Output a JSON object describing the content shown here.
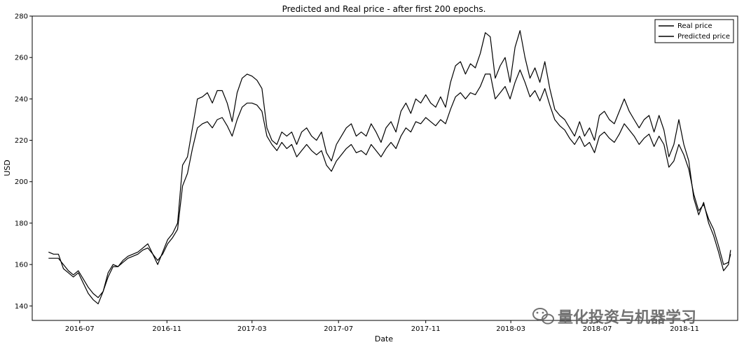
{
  "chart_data": {
    "type": "line",
    "title": "Predicted and Real price - after first 200 epochs.",
    "xlabel": "Date",
    "ylabel": "USD",
    "xlim": [
      "2016-04-25",
      "2019-01-15"
    ],
    "ylim": [
      133,
      280
    ],
    "x_ticks": [
      "2016-07-01",
      "2016-11-01",
      "2017-03-01",
      "2017-07-01",
      "2017-11-01",
      "2018-03-01",
      "2018-07-01",
      "2018-11-01"
    ],
    "x_tick_labels": [
      "2016-07",
      "2016-11",
      "2017-03",
      "2017-07",
      "2017-11",
      "2018-03",
      "2018-07",
      "2018-11"
    ],
    "y_ticks": [
      140,
      160,
      180,
      200,
      220,
      240,
      260,
      280
    ],
    "grid": false,
    "legend": {
      "position": "top-right",
      "entries": [
        "Real price",
        "Predicted price"
      ]
    },
    "series": [
      {
        "name": "Real price",
        "color": "#000000",
        "points": [
          [
            "2016-05-18",
            166
          ],
          [
            "2016-05-25",
            165
          ],
          [
            "2016-06-01",
            165
          ],
          [
            "2016-06-08",
            158
          ],
          [
            "2016-06-15",
            156
          ],
          [
            "2016-06-22",
            154
          ],
          [
            "2016-06-29",
            156
          ],
          [
            "2016-07-06",
            151
          ],
          [
            "2016-07-13",
            146
          ],
          [
            "2016-07-20",
            143
          ],
          [
            "2016-07-27",
            141
          ],
          [
            "2016-08-03",
            147
          ],
          [
            "2016-08-10",
            156
          ],
          [
            "2016-08-17",
            160
          ],
          [
            "2016-08-24",
            159
          ],
          [
            "2016-08-31",
            162
          ],
          [
            "2016-09-07",
            164
          ],
          [
            "2016-09-14",
            165
          ],
          [
            "2016-09-21",
            166
          ],
          [
            "2016-09-28",
            168
          ],
          [
            "2016-10-05",
            170
          ],
          [
            "2016-10-12",
            165
          ],
          [
            "2016-10-19",
            160
          ],
          [
            "2016-10-26",
            166
          ],
          [
            "2016-11-02",
            172
          ],
          [
            "2016-11-09",
            175
          ],
          [
            "2016-11-16",
            180
          ],
          [
            "2016-11-23",
            208
          ],
          [
            "2016-11-30",
            212
          ],
          [
            "2016-12-07",
            226
          ],
          [
            "2016-12-14",
            240
          ],
          [
            "2016-12-21",
            241
          ],
          [
            "2016-12-28",
            243
          ],
          [
            "2017-01-04",
            238
          ],
          [
            "2017-01-11",
            244
          ],
          [
            "2017-01-18",
            244
          ],
          [
            "2017-01-25",
            238
          ],
          [
            "2017-02-01",
            229
          ],
          [
            "2017-02-08",
            243
          ],
          [
            "2017-02-15",
            250
          ],
          [
            "2017-02-22",
            252
          ],
          [
            "2017-03-01",
            251
          ],
          [
            "2017-03-08",
            249
          ],
          [
            "2017-03-15",
            245
          ],
          [
            "2017-03-22",
            226
          ],
          [
            "2017-03-29",
            220
          ],
          [
            "2017-04-05",
            218
          ],
          [
            "2017-04-12",
            224
          ],
          [
            "2017-04-19",
            222
          ],
          [
            "2017-04-26",
            224
          ],
          [
            "2017-05-03",
            218
          ],
          [
            "2017-05-10",
            224
          ],
          [
            "2017-05-17",
            226
          ],
          [
            "2017-05-24",
            222
          ],
          [
            "2017-05-31",
            220
          ],
          [
            "2017-06-07",
            224
          ],
          [
            "2017-06-14",
            214
          ],
          [
            "2017-06-21",
            210
          ],
          [
            "2017-06-28",
            218
          ],
          [
            "2017-07-05",
            222
          ],
          [
            "2017-07-12",
            226
          ],
          [
            "2017-07-19",
            228
          ],
          [
            "2017-07-26",
            222
          ],
          [
            "2017-08-02",
            224
          ],
          [
            "2017-08-09",
            222
          ],
          [
            "2017-08-16",
            228
          ],
          [
            "2017-08-23",
            224
          ],
          [
            "2017-08-30",
            219
          ],
          [
            "2017-09-06",
            226
          ],
          [
            "2017-09-13",
            229
          ],
          [
            "2017-09-20",
            224
          ],
          [
            "2017-09-27",
            234
          ],
          [
            "2017-10-04",
            238
          ],
          [
            "2017-10-11",
            233
          ],
          [
            "2017-10-18",
            240
          ],
          [
            "2017-10-25",
            238
          ],
          [
            "2017-11-01",
            242
          ],
          [
            "2017-11-08",
            238
          ],
          [
            "2017-11-15",
            236
          ],
          [
            "2017-11-22",
            241
          ],
          [
            "2017-11-29",
            236
          ],
          [
            "2017-12-06",
            248
          ],
          [
            "2017-12-13",
            256
          ],
          [
            "2017-12-20",
            258
          ],
          [
            "2017-12-27",
            252
          ],
          [
            "2018-01-03",
            257
          ],
          [
            "2018-01-10",
            255
          ],
          [
            "2018-01-17",
            262
          ],
          [
            "2018-01-24",
            272
          ],
          [
            "2018-01-31",
            270
          ],
          [
            "2018-02-07",
            250
          ],
          [
            "2018-02-14",
            256
          ],
          [
            "2018-02-21",
            260
          ],
          [
            "2018-02-28",
            248
          ],
          [
            "2018-03-07",
            265
          ],
          [
            "2018-03-14",
            273
          ],
          [
            "2018-03-21",
            260
          ],
          [
            "2018-03-28",
            250
          ],
          [
            "2018-04-04",
            255
          ],
          [
            "2018-04-11",
            248
          ],
          [
            "2018-04-18",
            258
          ],
          [
            "2018-04-25",
            245
          ],
          [
            "2018-05-02",
            235
          ],
          [
            "2018-05-09",
            232
          ],
          [
            "2018-05-16",
            230
          ],
          [
            "2018-05-23",
            226
          ],
          [
            "2018-05-30",
            222
          ],
          [
            "2018-06-06",
            229
          ],
          [
            "2018-06-13",
            222
          ],
          [
            "2018-06-20",
            226
          ],
          [
            "2018-06-27",
            220
          ],
          [
            "2018-07-04",
            232
          ],
          [
            "2018-07-11",
            234
          ],
          [
            "2018-07-18",
            230
          ],
          [
            "2018-07-25",
            228
          ],
          [
            "2018-08-01",
            234
          ],
          [
            "2018-08-08",
            240
          ],
          [
            "2018-08-15",
            234
          ],
          [
            "2018-08-22",
            230
          ],
          [
            "2018-08-29",
            226
          ],
          [
            "2018-09-05",
            230
          ],
          [
            "2018-09-12",
            232
          ],
          [
            "2018-09-19",
            224
          ],
          [
            "2018-09-26",
            232
          ],
          [
            "2018-10-03",
            225
          ],
          [
            "2018-10-10",
            212
          ],
          [
            "2018-10-17",
            218
          ],
          [
            "2018-10-24",
            230
          ],
          [
            "2018-10-31",
            218
          ],
          [
            "2018-11-07",
            210
          ],
          [
            "2018-11-14",
            192
          ],
          [
            "2018-11-21",
            184
          ],
          [
            "2018-11-28",
            190
          ],
          [
            "2018-12-05",
            180
          ],
          [
            "2018-12-12",
            174
          ],
          [
            "2018-12-19",
            166
          ],
          [
            "2018-12-26",
            157
          ],
          [
            "2019-01-02",
            160
          ],
          [
            "2019-01-05",
            167
          ]
        ]
      },
      {
        "name": "Predicted price",
        "color": "#000000",
        "points": [
          [
            "2016-05-18",
            163
          ],
          [
            "2016-05-25",
            163
          ],
          [
            "2016-06-01",
            163
          ],
          [
            "2016-06-08",
            160
          ],
          [
            "2016-06-15",
            157
          ],
          [
            "2016-06-22",
            155
          ],
          [
            "2016-06-29",
            157
          ],
          [
            "2016-07-06",
            153
          ],
          [
            "2016-07-13",
            149
          ],
          [
            "2016-07-20",
            146
          ],
          [
            "2016-07-27",
            144
          ],
          [
            "2016-08-03",
            147
          ],
          [
            "2016-08-10",
            154
          ],
          [
            "2016-08-17",
            159
          ],
          [
            "2016-08-24",
            159
          ],
          [
            "2016-08-31",
            161
          ],
          [
            "2016-09-07",
            163
          ],
          [
            "2016-09-14",
            164
          ],
          [
            "2016-09-21",
            165
          ],
          [
            "2016-09-28",
            167
          ],
          [
            "2016-10-05",
            168
          ],
          [
            "2016-10-12",
            165
          ],
          [
            "2016-10-19",
            162
          ],
          [
            "2016-10-26",
            165
          ],
          [
            "2016-11-02",
            170
          ],
          [
            "2016-11-09",
            173
          ],
          [
            "2016-11-16",
            177
          ],
          [
            "2016-11-23",
            198
          ],
          [
            "2016-11-30",
            204
          ],
          [
            "2016-12-07",
            216
          ],
          [
            "2016-12-14",
            226
          ],
          [
            "2016-12-21",
            228
          ],
          [
            "2016-12-28",
            229
          ],
          [
            "2017-01-04",
            226
          ],
          [
            "2017-01-11",
            230
          ],
          [
            "2017-01-18",
            231
          ],
          [
            "2017-01-25",
            227
          ],
          [
            "2017-02-01",
            222
          ],
          [
            "2017-02-08",
            230
          ],
          [
            "2017-02-15",
            236
          ],
          [
            "2017-02-22",
            238
          ],
          [
            "2017-03-01",
            238
          ],
          [
            "2017-03-08",
            237
          ],
          [
            "2017-03-15",
            234
          ],
          [
            "2017-03-22",
            222
          ],
          [
            "2017-03-29",
            218
          ],
          [
            "2017-04-05",
            215
          ],
          [
            "2017-04-12",
            219
          ],
          [
            "2017-04-19",
            216
          ],
          [
            "2017-04-26",
            218
          ],
          [
            "2017-05-03",
            212
          ],
          [
            "2017-05-10",
            215
          ],
          [
            "2017-05-17",
            218
          ],
          [
            "2017-05-24",
            215
          ],
          [
            "2017-05-31",
            213
          ],
          [
            "2017-06-07",
            215
          ],
          [
            "2017-06-14",
            208
          ],
          [
            "2017-06-21",
            205
          ],
          [
            "2017-06-28",
            210
          ],
          [
            "2017-07-05",
            213
          ],
          [
            "2017-07-12",
            216
          ],
          [
            "2017-07-19",
            218
          ],
          [
            "2017-07-26",
            214
          ],
          [
            "2017-08-02",
            215
          ],
          [
            "2017-08-09",
            213
          ],
          [
            "2017-08-16",
            218
          ],
          [
            "2017-08-23",
            215
          ],
          [
            "2017-08-30",
            212
          ],
          [
            "2017-09-06",
            216
          ],
          [
            "2017-09-13",
            219
          ],
          [
            "2017-09-20",
            216
          ],
          [
            "2017-09-27",
            222
          ],
          [
            "2017-10-04",
            226
          ],
          [
            "2017-10-11",
            224
          ],
          [
            "2017-10-18",
            229
          ],
          [
            "2017-10-25",
            228
          ],
          [
            "2017-11-01",
            231
          ],
          [
            "2017-11-08",
            229
          ],
          [
            "2017-11-15",
            227
          ],
          [
            "2017-11-22",
            230
          ],
          [
            "2017-11-29",
            228
          ],
          [
            "2017-12-06",
            235
          ],
          [
            "2017-12-13",
            241
          ],
          [
            "2017-12-20",
            243
          ],
          [
            "2017-12-27",
            240
          ],
          [
            "2018-01-03",
            243
          ],
          [
            "2018-01-10",
            242
          ],
          [
            "2018-01-17",
            246
          ],
          [
            "2018-01-24",
            252
          ],
          [
            "2018-01-31",
            252
          ],
          [
            "2018-02-07",
            240
          ],
          [
            "2018-02-14",
            243
          ],
          [
            "2018-02-21",
            246
          ],
          [
            "2018-02-28",
            240
          ],
          [
            "2018-03-07",
            248
          ],
          [
            "2018-03-14",
            254
          ],
          [
            "2018-03-21",
            248
          ],
          [
            "2018-03-28",
            241
          ],
          [
            "2018-04-04",
            244
          ],
          [
            "2018-04-11",
            239
          ],
          [
            "2018-04-18",
            245
          ],
          [
            "2018-04-25",
            237
          ],
          [
            "2018-05-02",
            230
          ],
          [
            "2018-05-09",
            227
          ],
          [
            "2018-05-16",
            225
          ],
          [
            "2018-05-23",
            221
          ],
          [
            "2018-05-30",
            218
          ],
          [
            "2018-06-06",
            222
          ],
          [
            "2018-06-13",
            217
          ],
          [
            "2018-06-20",
            219
          ],
          [
            "2018-06-27",
            214
          ],
          [
            "2018-07-04",
            222
          ],
          [
            "2018-07-11",
            224
          ],
          [
            "2018-07-18",
            221
          ],
          [
            "2018-07-25",
            219
          ],
          [
            "2018-08-01",
            223
          ],
          [
            "2018-08-08",
            228
          ],
          [
            "2018-08-15",
            225
          ],
          [
            "2018-08-22",
            222
          ],
          [
            "2018-08-29",
            218
          ],
          [
            "2018-09-05",
            221
          ],
          [
            "2018-09-12",
            223
          ],
          [
            "2018-09-19",
            217
          ],
          [
            "2018-09-26",
            222
          ],
          [
            "2018-10-03",
            218
          ],
          [
            "2018-10-10",
            207
          ],
          [
            "2018-10-17",
            210
          ],
          [
            "2018-10-24",
            218
          ],
          [
            "2018-10-31",
            213
          ],
          [
            "2018-11-07",
            206
          ],
          [
            "2018-11-14",
            194
          ],
          [
            "2018-11-21",
            186
          ],
          [
            "2018-11-28",
            189
          ],
          [
            "2018-12-05",
            182
          ],
          [
            "2018-12-12",
            177
          ],
          [
            "2018-12-19",
            169
          ],
          [
            "2018-12-26",
            160
          ],
          [
            "2019-01-02",
            161
          ],
          [
            "2019-01-05",
            165
          ]
        ]
      }
    ]
  },
  "watermark": {
    "text": "量化投资与机器学习",
    "icon": "wechat-icon"
  }
}
